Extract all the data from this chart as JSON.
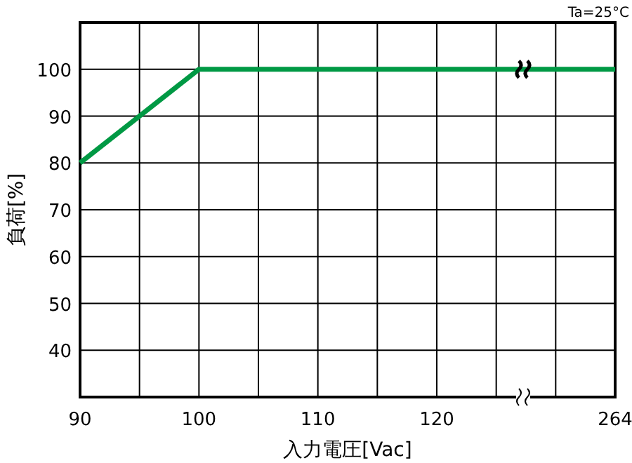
{
  "chart_data": {
    "type": "line",
    "xlabel": "入力電圧[Vac]",
    "ylabel": "負荷[%]",
    "annotations": [
      "Ta=25°C"
    ],
    "categories": [
      "90",
      null,
      "100",
      null,
      "110",
      null,
      "120",
      null,
      null,
      "264"
    ],
    "series": [
      {
        "color": "#009944",
        "values": [
          80,
          90,
          100,
          100,
          100,
          100,
          100,
          100,
          100,
          100
        ]
      }
    ],
    "ylim": [
      30,
      110
    ],
    "yticks": [
      40,
      50,
      60,
      70,
      80,
      90,
      100
    ],
    "grid": true,
    "marker": "none",
    "line_style": "solid"
  }
}
